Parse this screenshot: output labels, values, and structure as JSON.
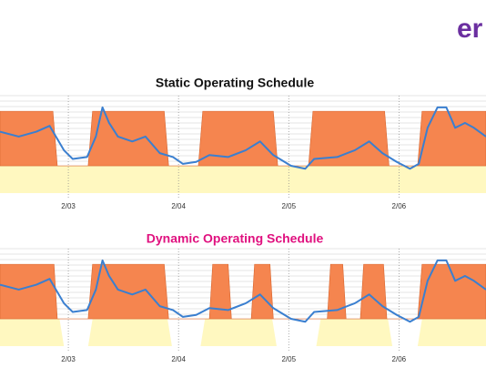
{
  "logo": "er",
  "chart_data": [
    {
      "type": "area-line",
      "title": "Static Operating Schedule",
      "title_color": "#111111",
      "xlim": [
        2.38,
        6.79
      ],
      "ylim": [
        0,
        100
      ],
      "xticks": [
        {
          "value": 3,
          "label": "2/03"
        },
        {
          "value": 4,
          "label": "2/04"
        },
        {
          "value": 5,
          "label": "2/05"
        },
        {
          "value": 6,
          "label": "2/06"
        }
      ],
      "grid": true,
      "series": [
        {
          "kind": "area",
          "color": "#fff8c0",
          "x": [
            2.38,
            6.79
          ],
          "values": [
            28,
            28
          ]
        },
        {
          "kind": "area",
          "color": "#f5854f",
          "x": [
            2.38,
            2.86,
            2.9,
            3.18,
            3.22,
            3.87,
            3.91,
            4.18,
            4.22,
            4.86,
            4.9,
            5.18,
            5.22,
            5.87,
            5.91,
            6.17,
            6.21,
            6.79
          ],
          "values": [
            84,
            84,
            28,
            28,
            84,
            84,
            28,
            28,
            84,
            84,
            28,
            28,
            84,
            84,
            28,
            28,
            84,
            84
          ]
        },
        {
          "kind": "line",
          "color": "#3a7fd0",
          "x": [
            2.38,
            2.55,
            2.71,
            2.83,
            2.96,
            3.04,
            3.17,
            3.25,
            3.31,
            3.37,
            3.45,
            3.58,
            3.7,
            3.83,
            3.95,
            4.04,
            4.16,
            4.28,
            4.45,
            4.61,
            4.74,
            4.86,
            5.02,
            5.15,
            5.23,
            5.44,
            5.6,
            5.73,
            5.85,
            5.98,
            6.1,
            6.18,
            6.26,
            6.35,
            6.43,
            6.51,
            6.6,
            6.68,
            6.79
          ],
          "values": [
            63,
            58,
            63,
            69,
            44,
            35,
            37,
            58,
            88,
            72,
            58,
            53,
            58,
            41,
            37,
            30,
            32,
            39,
            37,
            44,
            53,
            39,
            28,
            25,
            35,
            37,
            44,
            53,
            41,
            32,
            25,
            30,
            67,
            88,
            88,
            67,
            72,
            67,
            58
          ]
        }
      ]
    },
    {
      "type": "area-line",
      "title": "Dynamic Operating Schedule",
      "title_color": "#e0117f",
      "xlim": [
        2.38,
        6.79
      ],
      "ylim": [
        0,
        100
      ],
      "xticks": [
        {
          "value": 3,
          "label": "2/03"
        },
        {
          "value": 4,
          "label": "2/04"
        },
        {
          "value": 5,
          "label": "2/05"
        },
        {
          "value": 6,
          "label": "2/06"
        }
      ],
      "grid": true,
      "series": [
        {
          "kind": "area",
          "color": "#fff8c0",
          "x": [
            2.38,
            2.92,
            2.96,
            3.18,
            3.22,
            3.9,
            3.94,
            4.2,
            4.24,
            4.85,
            4.89,
            5.25,
            5.29,
            5.9,
            5.94,
            6.17,
            6.21,
            6.79
          ],
          "values": [
            28,
            28,
            0,
            0,
            28,
            28,
            0,
            0,
            28,
            28,
            0,
            0,
            28,
            28,
            0,
            0,
            28,
            28
          ]
        },
        {
          "kind": "area",
          "color": "#f5854f",
          "x": [
            2.38,
            2.87,
            2.9,
            3.18,
            3.22,
            3.87,
            3.91,
            4.28,
            4.31,
            4.45,
            4.48,
            4.66,
            4.69,
            4.83,
            4.86,
            5.35,
            5.38,
            5.49,
            5.52,
            5.65,
            5.68,
            5.86,
            5.89,
            6.17,
            6.21,
            6.79
          ],
          "values": [
            84,
            84,
            28,
            28,
            84,
            84,
            28,
            28,
            84,
            84,
            28,
            28,
            84,
            84,
            28,
            28,
            84,
            84,
            28,
            28,
            84,
            84,
            28,
            28,
            84,
            84
          ]
        },
        {
          "kind": "line",
          "color": "#3a7fd0",
          "x": [
            2.38,
            2.55,
            2.71,
            2.83,
            2.96,
            3.04,
            3.17,
            3.25,
            3.31,
            3.37,
            3.45,
            3.58,
            3.7,
            3.83,
            3.95,
            4.04,
            4.16,
            4.28,
            4.45,
            4.61,
            4.74,
            4.86,
            5.02,
            5.15,
            5.23,
            5.44,
            5.6,
            5.73,
            5.85,
            5.98,
            6.1,
            6.18,
            6.26,
            6.35,
            6.43,
            6.51,
            6.6,
            6.68,
            6.79
          ],
          "values": [
            63,
            58,
            63,
            69,
            44,
            35,
            37,
            58,
            88,
            72,
            58,
            53,
            58,
            41,
            37,
            30,
            32,
            39,
            37,
            44,
            53,
            39,
            28,
            25,
            35,
            37,
            44,
            53,
            41,
            32,
            25,
            30,
            67,
            88,
            88,
            67,
            72,
            67,
            58
          ]
        }
      ]
    }
  ]
}
